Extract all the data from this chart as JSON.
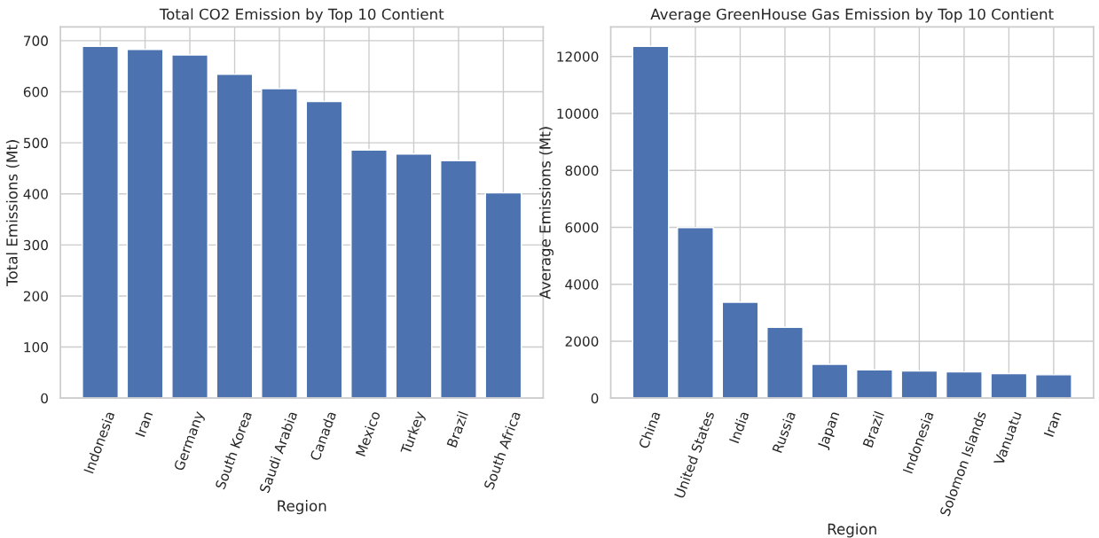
{
  "chart_data": [
    {
      "type": "bar",
      "title": "Total CO2 Emission by Top 10 Contient",
      "xlabel": "Region",
      "ylabel": "Total Emissions (Mt)",
      "categories": [
        "Indonesia",
        "Iran",
        "Germany",
        "South Korea",
        "Saudi Arabia",
        "Canada",
        "Mexico",
        "Turkey",
        "Brazil",
        "South Africa"
      ],
      "values": [
        689,
        683,
        672,
        634,
        606,
        581,
        486,
        478,
        465,
        402
      ],
      "color": "#4c72b0",
      "ylim": [
        0,
        727
      ],
      "yticks": [
        0,
        100,
        200,
        300,
        400,
        500,
        600,
        700
      ],
      "grid": true
    },
    {
      "type": "bar",
      "title": "Average GreenHouse Gas Emission by Top 10 Contient",
      "xlabel": "Region",
      "ylabel": "Average Emissions (Mt)",
      "categories": [
        "China",
        "United States",
        "India",
        "Russia",
        "Japan",
        "Brazil",
        "Indonesia",
        "Solomon Islands",
        "Vanuatu",
        "Iran"
      ],
      "values": [
        12360,
        5990,
        3370,
        2490,
        1190,
        990,
        950,
        920,
        860,
        820
      ],
      "color": "#4c72b0",
      "ylim": [
        0,
        13040
      ],
      "yticks": [
        0,
        2000,
        4000,
        6000,
        8000,
        10000,
        12000
      ],
      "grid": true
    }
  ]
}
